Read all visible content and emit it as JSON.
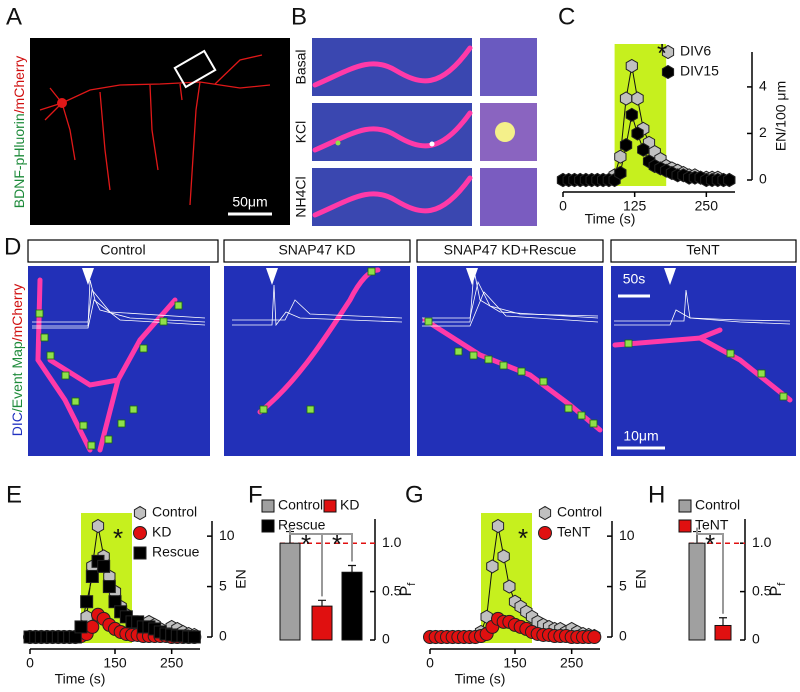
{
  "panel_labels": [
    "A",
    "B",
    "C",
    "D",
    "E",
    "F",
    "G",
    "H"
  ],
  "panel_a": {
    "label_parts": [
      "BDNF-pHluorin",
      "/mCherry"
    ],
    "scale_bar": "50μm"
  },
  "panel_b": {
    "rows": [
      "Basal",
      "KCl",
      "NH4Cl"
    ]
  },
  "panel_d": {
    "conditions": [
      "Control",
      "SNAP47 KD",
      "SNAP47 KD+Rescue",
      "TeNT"
    ],
    "label_parts": [
      "DIC",
      "/Event Map",
      "/mCherry"
    ],
    "time_bar": "50s",
    "scale_bar": "10μm"
  },
  "chart_data": [
    {
      "type": "line",
      "x": [
        0,
        10,
        20,
        30,
        40,
        50,
        60,
        70,
        80,
        90,
        100,
        110,
        120,
        130,
        140,
        150,
        160,
        170,
        180,
        190,
        200,
        210,
        220,
        230,
        240,
        250,
        260,
        270,
        280,
        290
      ],
      "xlim": [
        0,
        300
      ],
      "ylim": [
        0,
        5.5
      ],
      "xticks": [
        0,
        125,
        250
      ],
      "yticks": [
        0,
        2,
        4
      ],
      "y_axis_side": "right",
      "xlabel": "Time (s)",
      "ylabel": "EN/100 μm",
      "stimulus": [
        90,
        180
      ],
      "annotation": "*",
      "series": [
        {
          "name": "DIV6",
          "color": "#c0c0c0",
          "marker": "hexagon",
          "values": [
            0,
            0,
            0,
            0,
            0,
            0,
            0,
            0,
            0,
            0.2,
            1,
            3.5,
            4.9,
            3.5,
            2.2,
            1.6,
            1.2,
            0.9,
            0.6,
            0.5,
            0.4,
            0.3,
            0.2,
            0.2,
            0.1,
            0.1,
            0.1,
            0.1,
            0,
            0
          ]
        },
        {
          "name": "DIV15",
          "color": "#000000",
          "marker": "hexagon",
          "values": [
            0,
            0,
            0,
            0,
            0,
            0,
            0,
            0,
            0,
            0,
            0.3,
            1.5,
            2.8,
            2,
            1.3,
            0.8,
            0.6,
            0.5,
            0.4,
            0.3,
            0.2,
            0.2,
            0.1,
            0.1,
            0.1,
            0,
            0,
            0,
            0,
            0
          ]
        }
      ]
    },
    {
      "type": "line",
      "x": [
        0,
        10,
        20,
        30,
        40,
        50,
        60,
        70,
        80,
        90,
        100,
        110,
        120,
        130,
        140,
        150,
        160,
        170,
        180,
        190,
        200,
        210,
        220,
        230,
        240,
        250,
        260,
        270,
        280,
        290
      ],
      "xlim": [
        0,
        300
      ],
      "ylim": [
        0,
        11.5
      ],
      "xticks": [
        0,
        150,
        250
      ],
      "yticks": [
        0,
        5,
        10
      ],
      "y_axis_side": "right",
      "xlabel": "Time (s)",
      "ylabel": "EN",
      "stimulus": [
        90,
        180
      ],
      "annotation": "*",
      "series": [
        {
          "name": "Control",
          "color": "#c0c0c0",
          "marker": "hexagon",
          "values": [
            0,
            0,
            0,
            0,
            0,
            0,
            0,
            0,
            0,
            0.5,
            2,
            7,
            11,
            8,
            6,
            4.5,
            3,
            2.2,
            1.5,
            1.2,
            1,
            1.5,
            1.2,
            0.8,
            0.5,
            1,
            0.8,
            0.5,
            0.3,
            0.2
          ]
        },
        {
          "name": "KD",
          "color": "#e01010",
          "marker": "circle",
          "values": [
            0,
            0,
            0,
            0,
            0,
            0,
            0,
            0,
            0,
            0.1,
            0.3,
            1,
            2.2,
            1.8,
            1.2,
            0.8,
            0.5,
            0.3,
            0.2,
            0.2,
            0.1,
            0.1,
            0.1,
            0.1,
            0.1,
            0,
            0,
            0,
            0,
            0
          ]
        },
        {
          "name": "Rescue",
          "color": "#000000",
          "marker": "square",
          "values": [
            0,
            0,
            0,
            0,
            0,
            0,
            0,
            0,
            0,
            1,
            3.5,
            6,
            7.5,
            7,
            5,
            3.5,
            2.5,
            2,
            1.5,
            1.5,
            1,
            1,
            0.8,
            0.5,
            0.3,
            0.2,
            0.1,
            0.1,
            0,
            0
          ]
        }
      ]
    },
    {
      "type": "bar",
      "categories": [
        "Control",
        "KD",
        "Rescue"
      ],
      "values": [
        1,
        0.35,
        0.7
      ],
      "errors": [
        0.12,
        0.06,
        0.07
      ],
      "colors": [
        "#a0a0a0",
        "#e01010",
        "#000000"
      ],
      "ylim": [
        0,
        1.25
      ],
      "yticks": [
        0,
        0.5,
        {
          "value": 1,
          "label": "1.0"
        }
      ],
      "reference_line": 1,
      "ylabel": "P",
      "ylabel_sub": "f",
      "annotations": [
        "*",
        "*"
      ]
    },
    {
      "type": "line",
      "x": [
        0,
        10,
        20,
        30,
        40,
        50,
        60,
        70,
        80,
        90,
        100,
        110,
        120,
        130,
        140,
        150,
        160,
        170,
        180,
        190,
        200,
        210,
        220,
        230,
        240,
        250,
        260,
        270,
        280,
        290
      ],
      "xlim": [
        0,
        300
      ],
      "ylim": [
        0,
        11.5
      ],
      "xticks": [
        0,
        150,
        250
      ],
      "yticks": [
        0,
        5,
        10
      ],
      "y_axis_side": "right",
      "xlabel": "Time (s)",
      "ylabel": "EN",
      "stimulus": [
        90,
        180
      ],
      "annotation": "*",
      "series": [
        {
          "name": "Control",
          "color": "#c0c0c0",
          "marker": "hexagon",
          "values": [
            0,
            0,
            0,
            0,
            0,
            0,
            0,
            0,
            0,
            0.5,
            2,
            7,
            11,
            8,
            5,
            3.5,
            3,
            2.5,
            2,
            1.5,
            1.2,
            1,
            0.8,
            0.8,
            0.5,
            0.8,
            0.5,
            0.3,
            0.2,
            0.1
          ]
        },
        {
          "name": "TeNT",
          "color": "#e01010",
          "marker": "circle",
          "values": [
            0,
            0,
            0,
            0,
            0,
            0,
            0,
            0,
            0,
            0.1,
            0.3,
            1,
            1.8,
            1.5,
            1.5,
            1.2,
            1,
            0.8,
            0.5,
            0.3,
            0.2,
            0.2,
            0.1,
            0.1,
            0.1,
            0,
            0,
            0,
            0,
            0
          ]
        }
      ]
    },
    {
      "type": "bar",
      "categories": [
        "Control",
        "TeNT"
      ],
      "values": [
        1,
        0.15
      ],
      "errors": [
        0.12,
        0.08
      ],
      "colors": [
        "#a0a0a0",
        "#e01010"
      ],
      "ylim": [
        0,
        1.25
      ],
      "yticks": [
        0,
        0.5,
        {
          "value": 1,
          "label": "1.0"
        }
      ],
      "reference_line": 1,
      "ylabel": "P",
      "ylabel_sub": "f",
      "annotations": [
        "*"
      ]
    }
  ]
}
